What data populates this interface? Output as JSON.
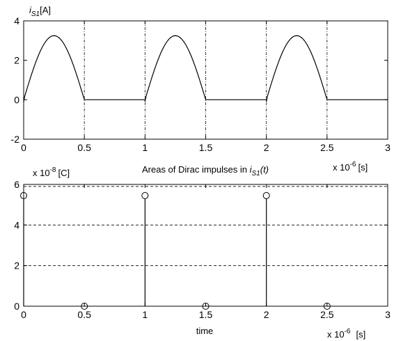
{
  "chart_data": [
    {
      "type": "line",
      "ylabel": {
        "main": "i",
        "sub": "S1",
        "unit": "[A]"
      },
      "xlim": [
        0,
        3
      ],
      "ylim": [
        -2,
        4
      ],
      "x_multiplier": {
        "prefix": "x 10",
        "exp": "-6",
        "unit": "[s]"
      },
      "x_ticks": [
        {
          "v": 0,
          "label": "0"
        },
        {
          "v": 0.5,
          "label": "0.5"
        },
        {
          "v": 1,
          "label": "1"
        },
        {
          "v": 1.5,
          "label": "1.5"
        },
        {
          "v": 2,
          "label": "2"
        },
        {
          "v": 2.5,
          "label": "2.5"
        },
        {
          "v": 3,
          "label": "3"
        }
      ],
      "y_ticks": [
        {
          "v": -2,
          "label": "-2"
        },
        {
          "v": 0,
          "label": "0"
        },
        {
          "v": 2,
          "label": "2"
        },
        {
          "v": 4,
          "label": "4"
        }
      ],
      "vlines_dashdot": [
        0.5,
        1,
        1.5,
        2,
        2.5
      ],
      "series": [
        {
          "pulses": [
            {
              "start": 0,
              "end": 0.5,
              "peak": 3.25,
              "peak_at": 0.25,
              "start_value": -0.1
            },
            {
              "start": 1,
              "end": 1.5,
              "peak": 3.25,
              "peak_at": 1.25,
              "start_value": -0.1
            },
            {
              "start": 2,
              "end": 2.5,
              "peak": 3.25,
              "peak_at": 2.25,
              "start_value": -0.1
            }
          ],
          "baseline": 0
        }
      ]
    },
    {
      "type": "stem",
      "title": {
        "prefix": "Areas of Dirac impulses in ",
        "main": "i",
        "sub": "S1",
        "suffix": "(t)"
      },
      "xlabel": "time",
      "ylabel": {
        "prefix": "x 10",
        "exp": "-8",
        "unit": "[C]"
      },
      "xlim": [
        0,
        3
      ],
      "ylim": [
        0,
        6
      ],
      "x_multiplier": {
        "prefix": "x 10",
        "exp": "-6",
        "unit": "[s]"
      },
      "x_ticks": [
        {
          "v": 0,
          "label": "0"
        },
        {
          "v": 0.5,
          "label": "0.5"
        },
        {
          "v": 1,
          "label": "1"
        },
        {
          "v": 1.5,
          "label": "1.5"
        },
        {
          "v": 2,
          "label": "2"
        },
        {
          "v": 2.5,
          "label": "2.5"
        },
        {
          "v": 3,
          "label": "3"
        }
      ],
      "y_ticks": [
        {
          "v": 0,
          "label": "0"
        },
        {
          "v": 2,
          "label": "2"
        },
        {
          "v": 4,
          "label": "4"
        },
        {
          "v": 6,
          "label": "6"
        }
      ],
      "hlines_dashed": [
        2,
        4,
        5.9
      ],
      "x": [
        0,
        0.5,
        1,
        1.5,
        2,
        2.5
      ],
      "values": [
        5.45,
        0,
        5.45,
        0,
        5.45,
        0
      ]
    }
  ]
}
